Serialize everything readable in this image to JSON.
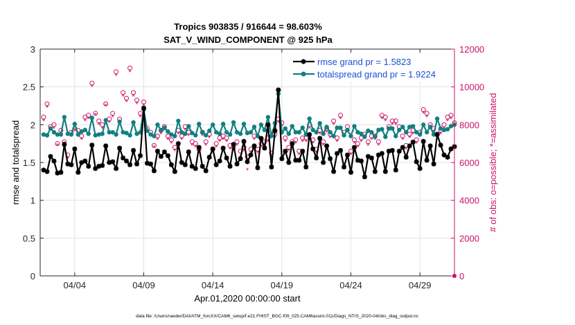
{
  "figure": {
    "title_line1": "Tropics 903835 / 916644 = 98.603%",
    "title_line2": "SAT_V_WIND_COMPONENT @ 925 hPa",
    "footer": "data file: /Users/raeder/DAI/ATM_forcXX/CAM6_setup/f.e21.FHIST_BGC.f09_025.CAM6assim.011/Diags_NTrS_2020-04/obs_diag_output.nc"
  },
  "chart_data": {
    "type": "line",
    "title": "Tropics 903835 / 916644 = 98.603%",
    "subtitle": "SAT_V_WIND_COMPONENT @ 925 hPa",
    "xlabel": "Apr.01,2020 00:00:00 start",
    "ylabel": "rmse and totalspread",
    "y2label": "# of obs: o=possible; *=assimilated",
    "x_unit": "days since Apr.01,2020",
    "xlim": [
      0.5,
      30.5
    ],
    "ylim": [
      0,
      3
    ],
    "y2lim": [
      0,
      12000
    ],
    "x_ticks": [
      3,
      8,
      13,
      18,
      23,
      28
    ],
    "x_tick_labels": [
      "04/04",
      "04/09",
      "04/14",
      "04/19",
      "04/24",
      "04/29"
    ],
    "y_ticks": [
      0,
      0.5,
      1,
      1.5,
      2,
      2.5,
      3
    ],
    "y_tick_labels": [
      "0",
      "0.5",
      "1",
      "1.5",
      "2",
      "2.5",
      "3"
    ],
    "y2_ticks": [
      0,
      2000,
      4000,
      6000,
      8000,
      10000,
      12000
    ],
    "y2_tick_labels": [
      "0",
      "2000",
      "4000",
      "6000",
      "8000",
      "10000",
      "12000"
    ],
    "grid": true,
    "legend_position": "top-right",
    "colors": {
      "rmse": "#000000",
      "spread": "#118080",
      "obs": "#cc1166",
      "axis_right": "#cc1166"
    },
    "series": [
      {
        "name": "rmse grand pr = 1.5823",
        "key": "rmse",
        "x": [
          0.75,
          1.0,
          1.25,
          1.5,
          1.75,
          2.0,
          2.25,
          2.5,
          2.75,
          3.0,
          3.25,
          3.5,
          3.75,
          4.0,
          4.25,
          4.5,
          4.75,
          5.0,
          5.25,
          5.5,
          5.75,
          6.0,
          6.25,
          6.5,
          6.75,
          7.0,
          7.25,
          7.5,
          7.75,
          8.0,
          8.25,
          8.5,
          8.75,
          9.0,
          9.25,
          9.5,
          9.75,
          10.0,
          10.25,
          10.5,
          10.75,
          11.0,
          11.25,
          11.5,
          11.75,
          12.0,
          12.25,
          12.5,
          12.75,
          13.0,
          13.25,
          13.5,
          13.75,
          14.0,
          14.25,
          14.5,
          14.75,
          15.0,
          15.25,
          15.5,
          15.75,
          16.0,
          16.25,
          16.5,
          16.75,
          17.0,
          17.25,
          17.5,
          17.75,
          18.0,
          18.25,
          18.5,
          18.75,
          19.0,
          19.25,
          19.5,
          19.75,
          20.0,
          20.25,
          20.5,
          20.75,
          21.0,
          21.25,
          21.5,
          21.75,
          22.0,
          22.25,
          22.5,
          22.75,
          23.0,
          23.25,
          23.5,
          23.75,
          24.0,
          24.25,
          24.5,
          24.75,
          25.0,
          25.25,
          25.5,
          25.75,
          26.0,
          26.25,
          26.5,
          26.75,
          27.0,
          27.25,
          27.5,
          27.75,
          28.0,
          28.25,
          28.5,
          28.75,
          29.0,
          29.25,
          29.5,
          29.75,
          30.0,
          30.25,
          30.5
        ],
        "values": [
          1.4,
          1.38,
          1.58,
          1.52,
          1.36,
          1.37,
          1.74,
          1.48,
          1.47,
          1.68,
          1.37,
          1.5,
          1.52,
          1.45,
          1.73,
          1.42,
          1.45,
          1.46,
          1.72,
          1.5,
          1.51,
          1.42,
          1.69,
          1.56,
          1.52,
          1.47,
          1.66,
          1.48,
          1.59,
          2.22,
          1.49,
          1.48,
          1.39,
          1.65,
          1.58,
          1.64,
          1.59,
          1.47,
          1.38,
          1.75,
          1.5,
          1.47,
          1.64,
          1.45,
          1.42,
          1.7,
          1.45,
          1.39,
          1.57,
          1.68,
          1.47,
          1.52,
          1.69,
          1.56,
          1.45,
          1.74,
          1.48,
          1.55,
          1.78,
          1.51,
          1.6,
          1.72,
          1.43,
          1.82,
          1.69,
          2.0,
          1.44,
          1.92,
          2.46,
          1.55,
          1.65,
          1.5,
          1.75,
          1.53,
          1.53,
          1.65,
          1.44,
          1.87,
          1.68,
          1.56,
          1.82,
          1.5,
          1.72,
          1.55,
          1.38,
          1.62,
          1.66,
          1.44,
          1.6,
          1.37,
          1.7,
          1.53,
          1.52,
          1.31,
          1.58,
          1.56,
          1.38,
          1.6,
          1.62,
          1.38,
          1.65,
          1.66,
          1.4,
          1.65,
          1.7,
          1.57,
          1.72,
          1.77,
          1.51,
          1.42,
          1.78,
          1.53,
          1.72,
          1.48,
          1.87,
          1.73,
          1.6,
          1.57,
          1.68,
          1.71
        ]
      },
      {
        "name": "totalspread grand pr = 1.9224",
        "key": "spread",
        "x": [
          0.75,
          1.0,
          1.25,
          1.5,
          1.75,
          2.0,
          2.25,
          2.5,
          2.75,
          3.0,
          3.25,
          3.5,
          3.75,
          4.0,
          4.25,
          4.5,
          4.75,
          5.0,
          5.25,
          5.5,
          5.75,
          6.0,
          6.25,
          6.5,
          6.75,
          7.0,
          7.25,
          7.5,
          7.75,
          8.0,
          8.25,
          8.5,
          8.75,
          9.0,
          9.25,
          9.5,
          9.75,
          10.0,
          10.25,
          10.5,
          10.75,
          11.0,
          11.25,
          11.5,
          11.75,
          12.0,
          12.25,
          12.5,
          12.75,
          13.0,
          13.25,
          13.5,
          13.75,
          14.0,
          14.25,
          14.5,
          14.75,
          15.0,
          15.25,
          15.5,
          15.75,
          16.0,
          16.25,
          16.5,
          16.75,
          17.0,
          17.25,
          17.5,
          17.75,
          18.0,
          18.25,
          18.5,
          18.75,
          19.0,
          19.25,
          19.5,
          19.75,
          20.0,
          20.25,
          20.5,
          20.75,
          21.0,
          21.25,
          21.5,
          21.75,
          22.0,
          22.25,
          22.5,
          22.75,
          23.0,
          23.25,
          23.5,
          23.75,
          24.0,
          24.25,
          24.5,
          24.75,
          25.0,
          25.25,
          25.5,
          25.75,
          26.0,
          26.25,
          26.5,
          26.75,
          27.0,
          27.25,
          27.5,
          27.75,
          28.0,
          28.25,
          28.5,
          28.75,
          29.0,
          29.25,
          29.5,
          29.75,
          30.0,
          30.25,
          30.5
        ],
        "values": [
          1.87,
          1.86,
          1.95,
          1.9,
          1.87,
          1.87,
          2.1,
          1.88,
          1.87,
          2.01,
          1.87,
          1.91,
          1.93,
          1.88,
          2.09,
          1.86,
          1.87,
          1.88,
          2.06,
          1.9,
          1.9,
          1.87,
          2.04,
          1.9,
          1.89,
          1.86,
          2.03,
          1.88,
          1.9,
          2.2,
          1.92,
          1.87,
          1.85,
          2.0,
          1.93,
          1.96,
          1.91,
          1.87,
          1.85,
          2.05,
          1.9,
          1.88,
          1.98,
          1.89,
          1.86,
          2.01,
          1.9,
          1.86,
          1.92,
          2.0,
          1.9,
          1.88,
          2.01,
          1.9,
          1.87,
          2.03,
          1.9,
          1.88,
          2.01,
          1.89,
          1.9,
          1.97,
          1.85,
          2.0,
          1.93,
          2.1,
          1.85,
          2.02,
          2.41,
          1.9,
          1.95,
          1.88,
          1.98,
          1.9,
          1.9,
          1.96,
          1.87,
          2.08,
          1.93,
          1.9,
          2.02,
          1.88,
          1.97,
          1.9,
          1.85,
          1.96,
          1.96,
          1.86,
          1.93,
          1.85,
          1.98,
          1.9,
          1.88,
          1.84,
          1.92,
          1.9,
          1.84,
          1.93,
          1.94,
          1.84,
          1.95,
          1.95,
          1.85,
          1.93,
          1.97,
          1.9,
          1.97,
          1.98,
          1.9,
          1.87,
          2.0,
          1.9,
          1.97,
          1.87,
          2.08,
          1.95,
          1.93,
          1.94,
          1.98,
          2.0
        ]
      },
      {
        "name": "obs possible",
        "key": "obs_possible",
        "x": [
          0.75,
          1.0,
          1.25,
          1.5,
          1.75,
          2.0,
          2.25,
          2.5,
          2.75,
          3.0,
          3.25,
          3.5,
          3.75,
          4.0,
          4.25,
          4.5,
          4.75,
          5.0,
          5.25,
          5.5,
          5.75,
          6.0,
          6.25,
          6.5,
          6.75,
          7.0,
          7.25,
          7.5,
          7.75,
          8.0,
          8.25,
          8.5,
          8.75,
          9.0,
          9.25,
          9.5,
          9.75,
          10.0,
          10.25,
          10.5,
          10.75,
          11.0,
          11.25,
          11.5,
          11.75,
          12.0,
          12.25,
          12.5,
          12.75,
          13.0,
          13.25,
          13.5,
          13.75,
          14.0,
          14.25,
          14.5,
          14.75,
          15.0,
          15.25,
          15.5,
          15.75,
          16.0,
          16.25,
          16.5,
          16.75,
          17.0,
          17.25,
          17.5,
          17.75,
          18.0,
          18.25,
          18.5,
          18.75,
          19.0,
          19.25,
          19.5,
          19.75,
          20.0,
          20.25,
          20.5,
          20.75,
          21.0,
          21.25,
          21.5,
          21.75,
          22.0,
          22.25,
          22.5,
          22.75,
          23.0,
          23.25,
          23.5,
          23.75,
          24.0,
          24.25,
          24.5,
          24.75,
          25.0,
          25.25,
          25.5,
          25.75,
          26.0,
          26.25,
          26.5,
          26.75,
          27.0,
          27.25,
          27.5,
          27.75,
          28.0,
          28.25,
          28.5,
          28.75,
          29.0,
          29.25,
          29.5,
          29.75,
          30.0,
          30.25,
          30.5
        ],
        "values": [
          8400,
          9100,
          7900,
          8000,
          7000,
          7700,
          7100,
          6400,
          7600,
          7800,
          7700,
          7400,
          8400,
          8500,
          10200,
          8600,
          8200,
          8000,
          9100,
          8300,
          8600,
          10800,
          8300,
          9700,
          9400,
          11000,
          9700,
          9300,
          8600,
          9200,
          7800,
          7600,
          6900,
          7400,
          7700,
          7900,
          7400,
          7200,
          6800,
          7700,
          7400,
          7900,
          7600,
          7100,
          7000,
          6700,
          7600,
          7100,
          7500,
          6700,
          7000,
          7300,
          7400,
          7300,
          6900,
          6800,
          7100,
          6600,
          6800,
          6300,
          6700,
          7400,
          6700,
          7000,
          7100,
          7300,
          6500,
          7500,
          8300,
          8100,
          7300,
          6800,
          7100,
          7200,
          6600,
          7300,
          7300,
          8000,
          7200,
          6700,
          7700,
          7100,
          7800,
          7500,
          8200,
          7300,
          8500,
          7600,
          7900,
          6600,
          7200,
          7000,
          7300,
          7500,
          7100,
          7400,
          7400,
          7100,
          8500,
          8400,
          7900,
          8200,
          8200,
          7900,
          7400,
          6900,
          7500,
          7700,
          7200,
          7600,
          8800,
          8600,
          8000,
          7800,
          7500,
          7700,
          8000,
          8400,
          8500,
          8100
        ]
      },
      {
        "name": "obs assimilated",
        "key": "obs_assimilated",
        "x": [
          0.75,
          1.0,
          1.25,
          1.5,
          1.75,
          2.0,
          2.25,
          2.5,
          2.75,
          3.0,
          3.25,
          3.5,
          3.75,
          4.0,
          4.25,
          4.5,
          4.75,
          5.0,
          5.25,
          5.5,
          5.75,
          6.0,
          6.25,
          6.5,
          6.75,
          7.0,
          7.25,
          7.5,
          7.75,
          8.0,
          8.25,
          8.5,
          8.75,
          9.0,
          9.25,
          9.5,
          9.75,
          10.0,
          10.25,
          10.5,
          10.75,
          11.0,
          11.25,
          11.5,
          11.75,
          12.0,
          12.25,
          12.5,
          12.75,
          13.0,
          13.25,
          13.5,
          13.75,
          14.0,
          14.25,
          14.5,
          14.75,
          15.0,
          15.25,
          15.5,
          15.75,
          16.0,
          16.25,
          16.5,
          16.75,
          17.0,
          17.25,
          17.5,
          17.75,
          18.0,
          18.25,
          18.5,
          18.75,
          19.0,
          19.25,
          19.5,
          19.75,
          20.0,
          20.25,
          20.5,
          20.75,
          21.0,
          21.25,
          21.5,
          21.75,
          22.0,
          22.25,
          22.5,
          22.75,
          23.0,
          23.25,
          23.5,
          23.75,
          24.0,
          24.25,
          24.5,
          24.75,
          25.0,
          25.25,
          25.5,
          25.75,
          26.0,
          26.25,
          26.5,
          26.75,
          27.0,
          27.25,
          27.5,
          27.75,
          28.0,
          28.25,
          28.5,
          28.75,
          29.0,
          29.25,
          29.5,
          29.75,
          30.0,
          30.25,
          30.5
        ],
        "values": [
          8200,
          8900,
          7800,
          7800,
          6900,
          7500,
          7000,
          6200,
          7400,
          7700,
          7500,
          7200,
          8200,
          8300,
          10000,
          8500,
          8000,
          7800,
          9000,
          8100,
          8400,
          10600,
          8100,
          9500,
          9200,
          10800,
          9500,
          9100,
          8400,
          9000,
          7600,
          7400,
          6800,
          7200,
          7500,
          7700,
          7200,
          7000,
          6600,
          7500,
          7200,
          7700,
          7400,
          6900,
          6800,
          6500,
          7400,
          6900,
          7300,
          6500,
          6800,
          7100,
          7200,
          7100,
          6700,
          6600,
          6900,
          6300,
          6600,
          5600,
          6500,
          7200,
          6500,
          6800,
          6900,
          7100,
          6300,
          7300,
          8100,
          7900,
          7100,
          6600,
          6900,
          7000,
          6400,
          7100,
          7100,
          7800,
          7000,
          6500,
          7500,
          6900,
          7600,
          7300,
          8000,
          7100,
          8300,
          7400,
          7700,
          6400,
          7000,
          6800,
          7100,
          7300,
          6900,
          7200,
          7200,
          6900,
          8300,
          8200,
          7700,
          8000,
          8000,
          7700,
          7200,
          6700,
          7300,
          7500,
          7000,
          7400,
          8600,
          8400,
          7800,
          7600,
          7300,
          7500,
          7800,
          8200,
          8300,
          7900
        ]
      }
    ],
    "legend": [
      {
        "label": "rmse grand pr = 1.5823",
        "series": "rmse"
      },
      {
        "label": "totalspread grand pr = 1.9224",
        "series": "spread"
      }
    ]
  }
}
